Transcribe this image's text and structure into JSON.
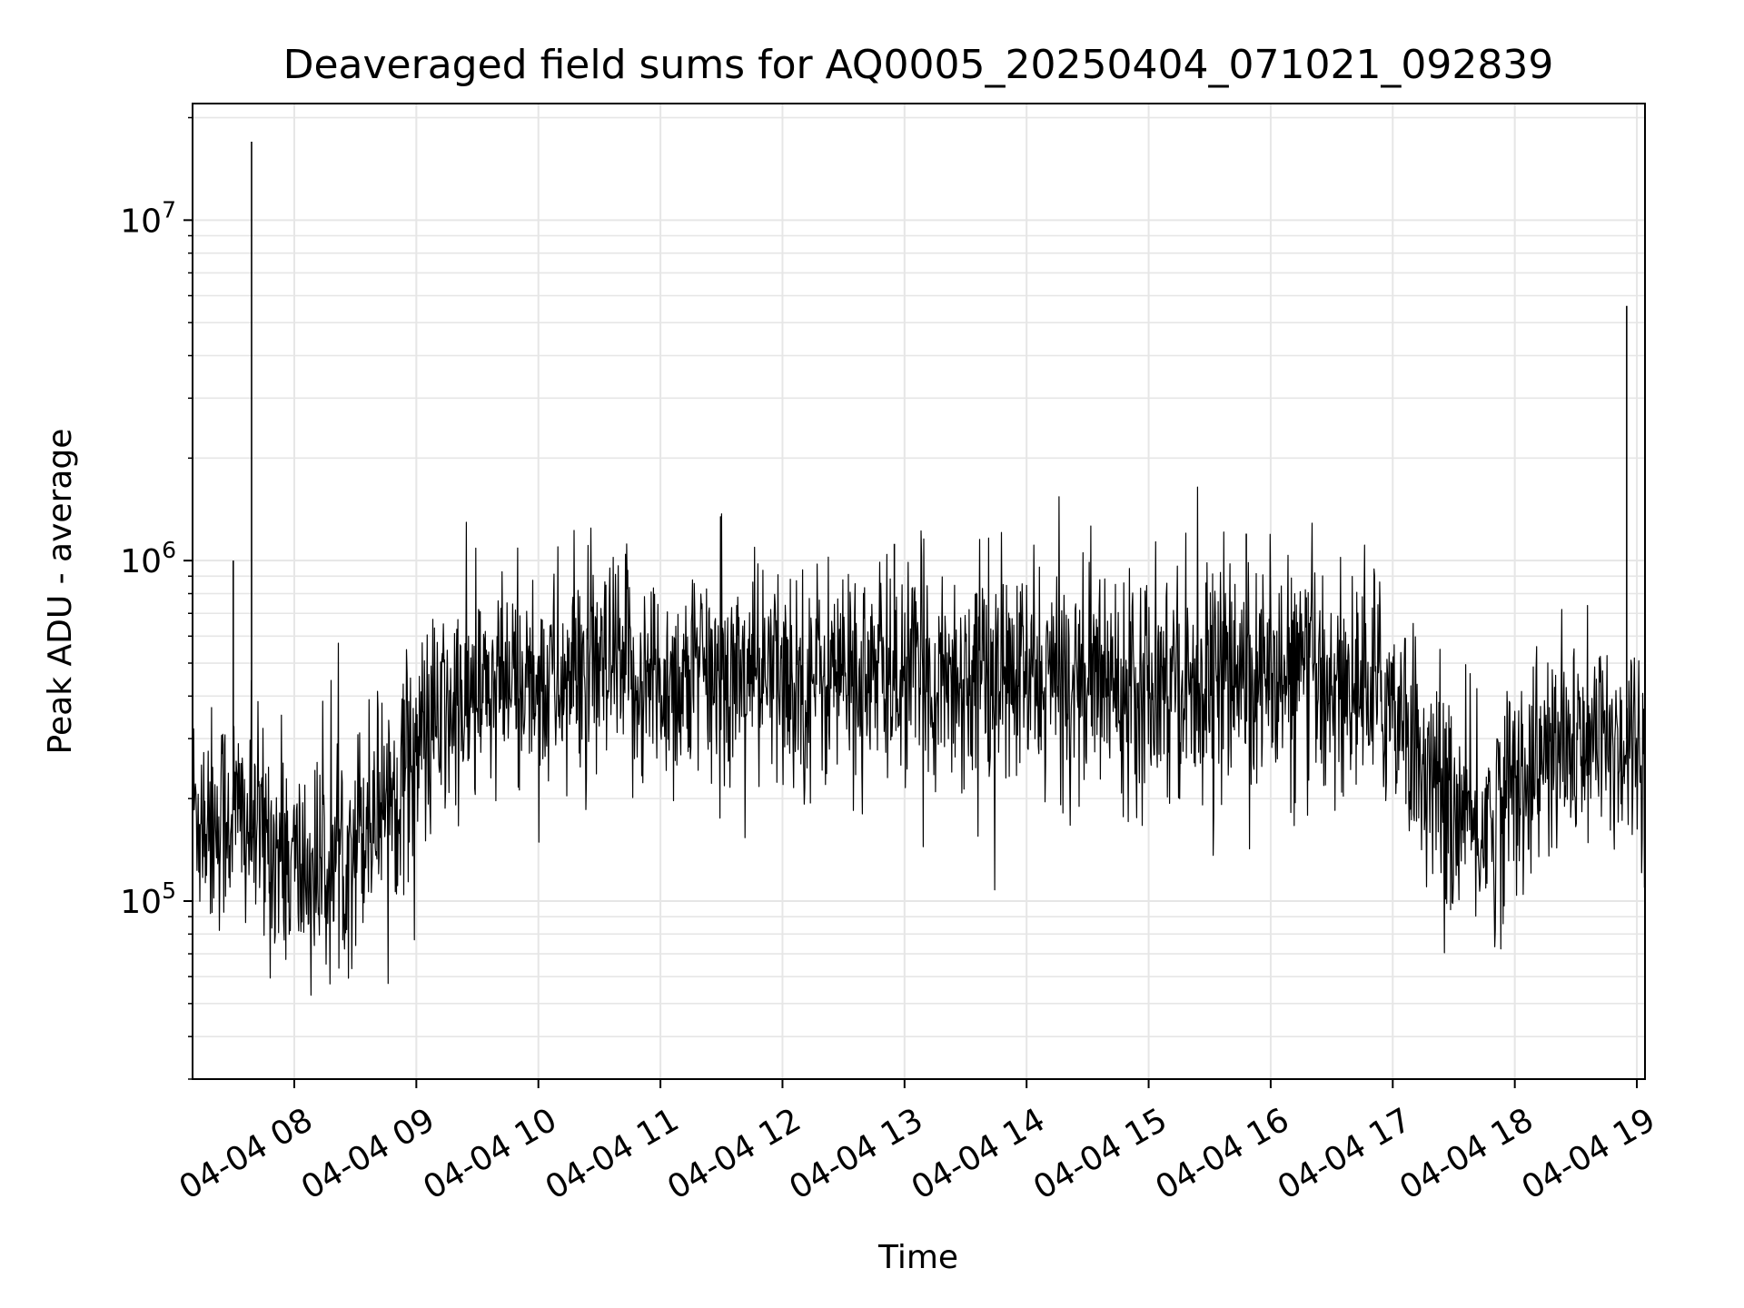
{
  "chart_data": {
    "type": "line",
    "title": "Deaveraged field sums for AQ0005_20250404_071021_092839",
    "xlabel": "Time",
    "ylabel": "Peak ADU - average",
    "yscale": "log",
    "xlim": [
      "04-04 07:10",
      "04-04 19:04"
    ],
    "ylim": [
      30000,
      22000000
    ],
    "grid": true,
    "line_color": "#000000",
    "grid_color": "#e6e6e6",
    "x_ticks": [
      "04-04 08",
      "04-04 09",
      "04-04 10",
      "04-04 11",
      "04-04 12",
      "04-04 13",
      "04-04 14",
      "04-04 15",
      "04-04 16",
      "04-04 17",
      "04-04 18",
      "04-04 19"
    ],
    "y_ticks": [
      {
        "value": 100000,
        "base": "10",
        "exp": "5"
      },
      {
        "value": 1000000,
        "base": "10",
        "exp": "6"
      },
      {
        "value": 10000000,
        "base": "10",
        "exp": "7"
      }
    ],
    "series": [
      {
        "x": [
          "04-04 07:10",
          "04-04 07:20",
          "04-04 07:30",
          "04-04 07:40",
          "04-04 07:48",
          "04-04 07:55",
          "04-04 08:00",
          "04-04 08:10",
          "04-04 08:20",
          "04-04 08:30",
          "04-04 08:40",
          "04-04 08:50",
          "04-04 09:00",
          "04-04 09:10",
          "04-04 09:20",
          "04-04 09:30",
          "04-04 09:40",
          "04-04 09:50",
          "04-04 10:00",
          "04-04 10:30",
          "04-04 11:00",
          "04-04 11:30",
          "04-04 12:00",
          "04-04 12:30",
          "04-04 13:00",
          "04-04 13:30",
          "04-04 14:00",
          "04-04 14:30",
          "04-04 15:00",
          "04-04 15:30",
          "04-04 16:00",
          "04-04 16:30",
          "04-04 17:00",
          "04-04 17:10",
          "04-04 17:20",
          "04-04 17:30",
          "04-04 17:40",
          "04-04 17:50",
          "04-04 18:00",
          "04-04 18:15",
          "04-04 18:30",
          "04-04 18:45",
          "04-04 18:55",
          "04-04 19:04"
        ],
        "y": [
          190000,
          170000,
          185000,
          160000,
          150000,
          130000,
          125000,
          120000,
          130000,
          160000,
          190000,
          220000,
          280000,
          330000,
          360000,
          390000,
          410000,
          430000,
          440000,
          450000,
          440000,
          450000,
          450000,
          455000,
          450000,
          455000,
          445000,
          450000,
          455000,
          450000,
          445000,
          430000,
          400000,
          300000,
          210000,
          180000,
          160000,
          175000,
          230000,
          260000,
          280000,
          290000,
          300000,
          300000
        ]
      }
    ],
    "spikes": [
      {
        "x": "04-04 07:39",
        "y": 17000000
      },
      {
        "x": "04-04 18:55",
        "y": 5600000
      },
      {
        "x": "04-04 07:30",
        "y": 1000000
      },
      {
        "x": "04-04 15:48",
        "y": 1200000
      },
      {
        "x": "04-04 12:55",
        "y": 1120000
      }
    ]
  }
}
